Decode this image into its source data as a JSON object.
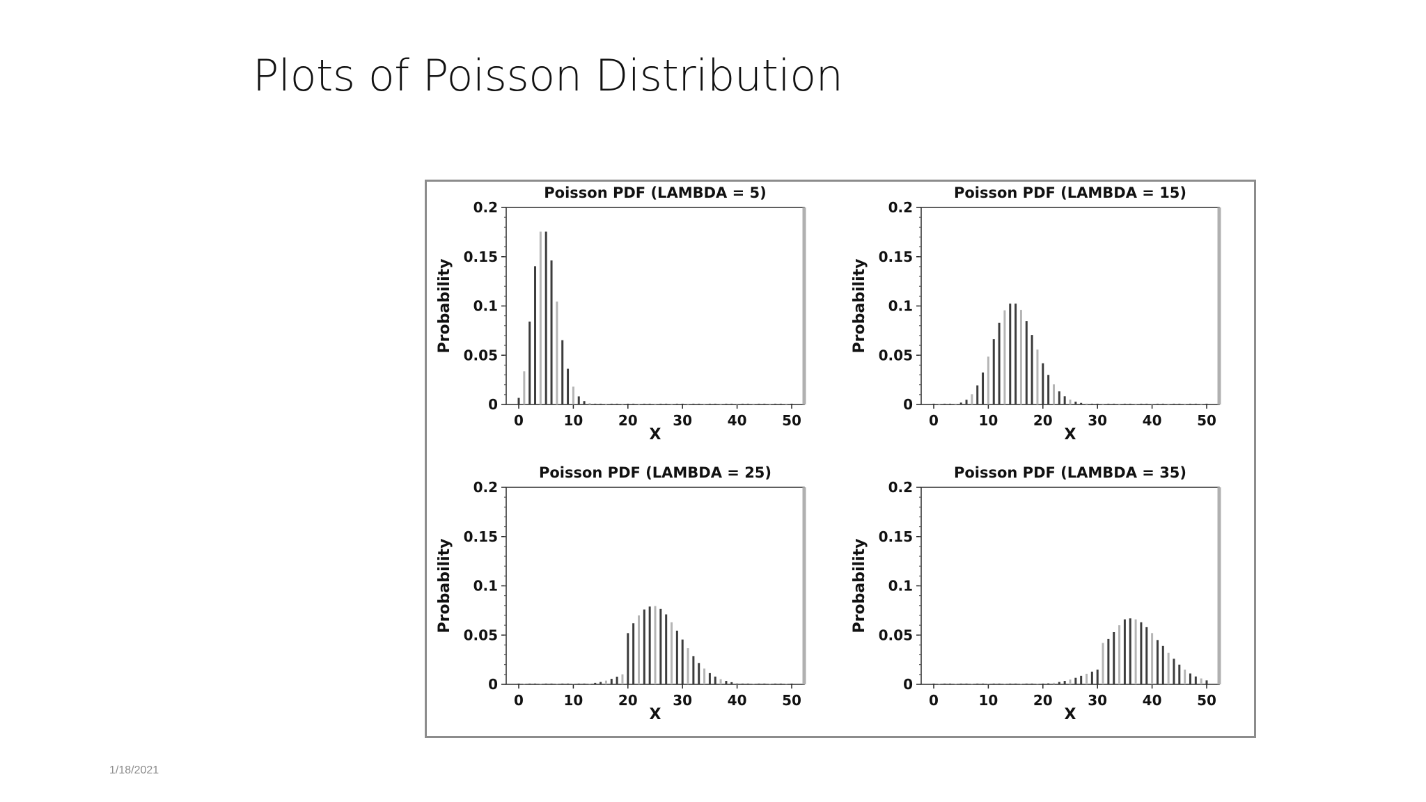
{
  "slide": {
    "title": "Plots of Poisson Distribution",
    "date": "1/18/2021"
  },
  "chart_data": [
    {
      "type": "bar",
      "title": "Poisson PDF (LAMBDA = 5)",
      "xlabel": "X",
      "ylabel": "Probability",
      "lambda": 5,
      "xlim": [
        0,
        50
      ],
      "ylim": [
        0,
        0.2
      ],
      "xticks": [
        "0",
        "10",
        "20",
        "30",
        "40",
        "50"
      ],
      "yticks": [
        "0",
        "0.05",
        "0.1",
        "0.15",
        "0.2"
      ],
      "grid": false,
      "x": [
        0,
        1,
        2,
        3,
        4,
        5,
        6,
        7,
        8,
        9,
        10,
        11,
        12,
        13,
        14,
        15,
        16,
        17,
        18,
        19,
        20,
        21,
        22,
        23,
        24,
        25,
        26,
        27,
        28,
        29,
        30,
        31,
        32,
        33,
        34,
        35,
        36,
        37,
        38,
        39,
        40,
        41,
        42,
        43,
        44,
        45,
        46,
        47,
        48,
        49,
        50
      ],
      "values": [
        0.0067,
        0.0337,
        0.0842,
        0.1404,
        0.1755,
        0.1755,
        0.1462,
        0.1044,
        0.0653,
        0.0363,
        0.0181,
        0.0082,
        0.0034,
        0.0013,
        0.0005,
        0.0002,
        0.0,
        0.0,
        0.0,
        0.0,
        0.0,
        0.0,
        0.0,
        0.0,
        0.0,
        0.0,
        0.0,
        0.0,
        0.0,
        0.0,
        0.0,
        0.0,
        0.0,
        0.0,
        0.0,
        0.0,
        0.0,
        0.0,
        0.0,
        0.0,
        0.0,
        0.0,
        0.0,
        0.0,
        0.0,
        0.0,
        0.0,
        0.0,
        0.0,
        0.0,
        0.0
      ]
    },
    {
      "type": "bar",
      "title": "Poisson PDF (LAMBDA = 15)",
      "xlabel": "X",
      "ylabel": "Probability",
      "lambda": 15,
      "xlim": [
        0,
        50
      ],
      "ylim": [
        0,
        0.2
      ],
      "xticks": [
        "0",
        "10",
        "20",
        "30",
        "40",
        "50"
      ],
      "yticks": [
        "0",
        "0.05",
        "0.1",
        "0.15",
        "0.2"
      ],
      "grid": false,
      "x": [
        0,
        1,
        2,
        3,
        4,
        5,
        6,
        7,
        8,
        9,
        10,
        11,
        12,
        13,
        14,
        15,
        16,
        17,
        18,
        19,
        20,
        21,
        22,
        23,
        24,
        25,
        26,
        27,
        28,
        29,
        30,
        31,
        32,
        33,
        34,
        35,
        36,
        37,
        38,
        39,
        40,
        41,
        42,
        43,
        44,
        45,
        46,
        47,
        48,
        49,
        50
      ],
      "values": [
        0.0,
        0.0,
        0.0,
        0.0002,
        0.0006,
        0.0019,
        0.0048,
        0.0104,
        0.0194,
        0.0324,
        0.0486,
        0.0663,
        0.0829,
        0.0956,
        0.1024,
        0.1024,
        0.096,
        0.0847,
        0.0706,
        0.0557,
        0.0418,
        0.0299,
        0.0204,
        0.0133,
        0.0083,
        0.005,
        0.0029,
        0.0016,
        0.0009,
        0.0004,
        0.0002,
        0.0001,
        0.0001,
        0.0,
        0.0,
        0.0,
        0.0,
        0.0,
        0.0,
        0.0,
        0.0,
        0.0,
        0.0,
        0.0,
        0.0,
        0.0,
        0.0,
        0.0,
        0.0,
        0.0,
        0.0
      ]
    },
    {
      "type": "bar",
      "title": "Poisson PDF (LAMBDA = 25)",
      "xlabel": "X",
      "ylabel": "Probability",
      "lambda": 25,
      "xlim": [
        0,
        50
      ],
      "ylim": [
        0,
        0.2
      ],
      "xticks": [
        "0",
        "10",
        "20",
        "30",
        "40",
        "50"
      ],
      "yticks": [
        "0",
        "0.05",
        "0.1",
        "0.15",
        "0.2"
      ],
      "grid": false,
      "x": [
        0,
        1,
        2,
        3,
        4,
        5,
        6,
        7,
        8,
        9,
        10,
        11,
        12,
        13,
        14,
        15,
        16,
        17,
        18,
        19,
        20,
        21,
        22,
        23,
        24,
        25,
        26,
        27,
        28,
        29,
        30,
        31,
        32,
        33,
        34,
        35,
        36,
        37,
        38,
        39,
        40,
        41,
        42,
        43,
        44,
        45,
        46,
        47,
        48,
        49,
        50
      ],
      "values": [
        0.0,
        0.0,
        0.0,
        0.0,
        0.0,
        0.0,
        0.0,
        0.0,
        0.0,
        0.0,
        0.0001,
        0.0002,
        0.0004,
        0.0008,
        0.0015,
        0.0024,
        0.0038,
        0.0056,
        0.0078,
        0.0102,
        0.052,
        0.062,
        0.07,
        0.076,
        0.079,
        0.0795,
        0.0765,
        0.071,
        0.063,
        0.0545,
        0.0455,
        0.0367,
        0.0287,
        0.0217,
        0.016,
        0.0114,
        0.0079,
        0.0053,
        0.0035,
        0.0022,
        0.0014,
        0.0008,
        0.0005,
        0.0003,
        0.0002,
        0.0001,
        0.0001,
        0.0,
        0.0,
        0.0,
        0.0
      ]
    },
    {
      "type": "bar",
      "title": "Poisson PDF (LAMBDA = 35)",
      "xlabel": "X",
      "ylabel": "Probability",
      "lambda": 35,
      "xlim": [
        0,
        50
      ],
      "ylim": [
        0,
        0.2
      ],
      "xticks": [
        "0",
        "10",
        "20",
        "30",
        "40",
        "50"
      ],
      "yticks": [
        "0",
        "0.05",
        "0.1",
        "0.15",
        "0.2"
      ],
      "grid": false,
      "x": [
        0,
        1,
        2,
        3,
        4,
        5,
        6,
        7,
        8,
        9,
        10,
        11,
        12,
        13,
        14,
        15,
        16,
        17,
        18,
        19,
        20,
        21,
        22,
        23,
        24,
        25,
        26,
        27,
        28,
        29,
        30,
        31,
        32,
        33,
        34,
        35,
        36,
        37,
        38,
        39,
        40,
        41,
        42,
        43,
        44,
        45,
        46,
        47,
        48,
        49,
        50
      ],
      "values": [
        0.0,
        0.0,
        0.0,
        0.0,
        0.0,
        0.0,
        0.0,
        0.0,
        0.0,
        0.0,
        0.0,
        0.0,
        0.0,
        0.0,
        0.0,
        0.0,
        0.0,
        0.0001,
        0.0002,
        0.0003,
        0.0006,
        0.001,
        0.0015,
        0.0024,
        0.0035,
        0.0049,
        0.0066,
        0.0086,
        0.0107,
        0.0129,
        0.015,
        0.042,
        0.046,
        0.053,
        0.06,
        0.066,
        0.067,
        0.066,
        0.063,
        0.058,
        0.052,
        0.045,
        0.039,
        0.032,
        0.026,
        0.02,
        0.015,
        0.011,
        0.008,
        0.006,
        0.004
      ]
    }
  ]
}
